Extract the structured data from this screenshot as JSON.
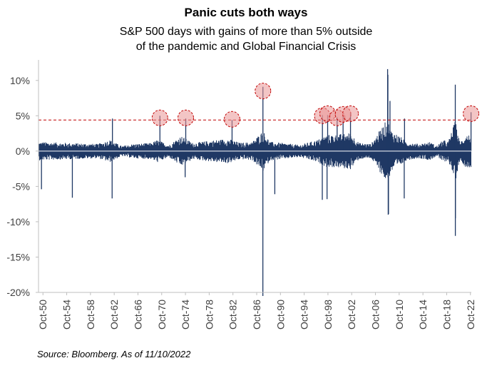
{
  "chart_data": {
    "type": "bar",
    "title": "Panic cuts both ways",
    "subtitle_lines": [
      "S&P 500 days with gains of more than 5% outside",
      "of the pandemic and Global Financial Crisis"
    ],
    "xlabel": "",
    "ylabel": "",
    "x_start_year": 1950,
    "x_end_year": 2022.9,
    "ylim": [
      -20,
      12.5
    ],
    "y_ticks": [
      10,
      5,
      0,
      -5,
      -10,
      -15,
      -20
    ],
    "y_tick_labels": [
      "10%",
      "5%",
      "0%",
      "-5%",
      "-10%",
      "-15%",
      "-20%"
    ],
    "x_tick_labels": [
      "Oct-50",
      "Oct-54",
      "Oct-58",
      "Oct-62",
      "Oct-66",
      "Oct-70",
      "Oct-74",
      "Oct-78",
      "Oct-82",
      "Oct-86",
      "Oct-90",
      "Oct-94",
      "Oct-98",
      "Oct-02",
      "Oct-06",
      "Oct-10",
      "Oct-14",
      "Oct-18",
      "Oct-22"
    ],
    "x_tick_years": [
      1950.75,
      1954.75,
      1958.75,
      1962.75,
      1966.75,
      1970.75,
      1974.75,
      1978.75,
      1982.75,
      1986.75,
      1990.75,
      1994.75,
      1998.75,
      2002.75,
      2006.75,
      2010.75,
      2014.75,
      2018.75,
      2022.75
    ],
    "threshold": 4.4,
    "grid": false,
    "legend": "none",
    "bar_color": "#1f3864",
    "highlight_color": "#c00000",
    "volatility_profile": [
      {
        "year": 1950,
        "level": 0.9
      },
      {
        "year": 1955,
        "level": 0.8
      },
      {
        "year": 1960,
        "level": 0.7
      },
      {
        "year": 1962,
        "level": 1.1
      },
      {
        "year": 1964,
        "level": 0.5
      },
      {
        "year": 1966,
        "level": 0.7
      },
      {
        "year": 1969,
        "level": 0.8
      },
      {
        "year": 1970,
        "level": 1.1
      },
      {
        "year": 1972,
        "level": 0.6
      },
      {
        "year": 1974,
        "level": 1.5
      },
      {
        "year": 1976,
        "level": 0.8
      },
      {
        "year": 1980,
        "level": 1.1
      },
      {
        "year": 1982,
        "level": 1.2
      },
      {
        "year": 1984,
        "level": 0.8
      },
      {
        "year": 1986,
        "level": 0.9
      },
      {
        "year": 1987.8,
        "level": 2.0
      },
      {
        "year": 1989,
        "level": 0.9
      },
      {
        "year": 1991,
        "level": 0.8
      },
      {
        "year": 1994,
        "level": 0.6
      },
      {
        "year": 1997,
        "level": 1.1
      },
      {
        "year": 1998.6,
        "level": 1.6
      },
      {
        "year": 2000,
        "level": 1.6
      },
      {
        "year": 2002.5,
        "level": 1.8
      },
      {
        "year": 2004,
        "level": 0.8
      },
      {
        "year": 2006,
        "level": 0.7
      },
      {
        "year": 2008.8,
        "level": 3.2
      },
      {
        "year": 2009.5,
        "level": 2.0
      },
      {
        "year": 2011,
        "level": 1.4
      },
      {
        "year": 2012,
        "level": 0.9
      },
      {
        "year": 2014,
        "level": 0.7
      },
      {
        "year": 2016,
        "level": 0.9
      },
      {
        "year": 2017,
        "level": 0.5
      },
      {
        "year": 2018.2,
        "level": 1.1
      },
      {
        "year": 2019,
        "level": 0.9
      },
      {
        "year": 2020.2,
        "level": 3.0
      },
      {
        "year": 2020.8,
        "level": 1.3
      },
      {
        "year": 2021,
        "level": 0.9
      },
      {
        "year": 2022,
        "level": 1.6
      },
      {
        "year": 2022.9,
        "level": 1.6
      }
    ],
    "spikes": [
      {
        "year": 1950.5,
        "value": -5.4
      },
      {
        "year": 1955.7,
        "value": -6.6
      },
      {
        "year": 1962.4,
        "value": -6.7
      },
      {
        "year": 1962.45,
        "value": 4.6
      },
      {
        "year": 1970.45,
        "value": 5.0
      },
      {
        "year": 1974.8,
        "value": 4.6
      },
      {
        "year": 1974.7,
        "value": -3.7
      },
      {
        "year": 1982.6,
        "value": 4.4
      },
      {
        "year": 1987.8,
        "value": 9.1
      },
      {
        "year": 1987.79,
        "value": -20.5
      },
      {
        "year": 1989.8,
        "value": -6.1
      },
      {
        "year": 1997.82,
        "value": 5.1
      },
      {
        "year": 1997.8,
        "value": -6.9
      },
      {
        "year": 1998.7,
        "value": 5.1
      },
      {
        "year": 1998.6,
        "value": -6.8
      },
      {
        "year": 2000.3,
        "value": 4.8
      },
      {
        "year": 2001.3,
        "value": 5.1
      },
      {
        "year": 2002.55,
        "value": 5.4
      },
      {
        "year": 2008.8,
        "value": 11.6
      },
      {
        "year": 2008.85,
        "value": 10.8
      },
      {
        "year": 2008.9,
        "value": -9.0
      },
      {
        "year": 2008.95,
        "value": -8.9
      },
      {
        "year": 2009.2,
        "value": 7.1
      },
      {
        "year": 2011.6,
        "value": -6.7
      },
      {
        "year": 2011.65,
        "value": 4.6
      },
      {
        "year": 2020.2,
        "value": 9.4
      },
      {
        "year": 2020.21,
        "value": -12.0
      },
      {
        "year": 2020.22,
        "value": -9.5
      },
      {
        "year": 2022.85,
        "value": 5.5
      }
    ],
    "highlights": [
      {
        "year": 1970.45,
        "value": 4.7
      },
      {
        "year": 1974.8,
        "value": 4.7
      },
      {
        "year": 1982.6,
        "value": 4.5
      },
      {
        "year": 1987.8,
        "value": 8.5
      },
      {
        "year": 1997.8,
        "value": 5.0
      },
      {
        "year": 1998.7,
        "value": 5.3
      },
      {
        "year": 2000.3,
        "value": 4.7
      },
      {
        "year": 2001.3,
        "value": 5.2
      },
      {
        "year": 2002.55,
        "value": 5.3
      },
      {
        "year": 2022.85,
        "value": 5.3
      }
    ]
  },
  "source": "Source: Bloomberg. As of 11/10/2022"
}
